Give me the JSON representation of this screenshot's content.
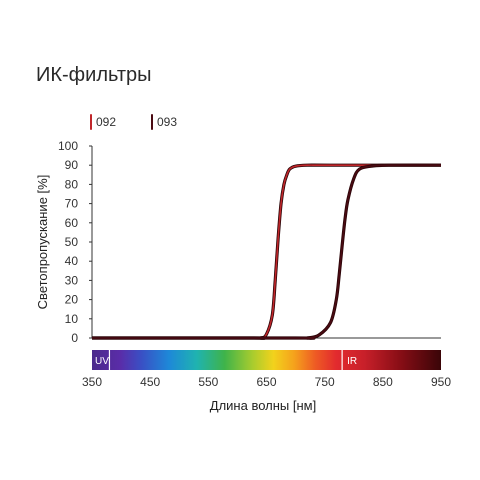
{
  "chart_data": {
    "type": "line",
    "title": "ИК-фильтры",
    "xlabel": "Длина волны [нм]",
    "ylabel": "Светопропускание [%]",
    "xlim": [
      350,
      950
    ],
    "ylim": [
      0,
      100
    ],
    "x_ticks": [
      "350",
      "450",
      "550",
      "650",
      "750",
      "850",
      "950"
    ],
    "y_ticks": [
      "0",
      "10",
      "20",
      "30",
      "40",
      "50",
      "60",
      "70",
      "80",
      "90",
      "100"
    ],
    "series": [
      {
        "name": "092",
        "color": "#c0262a",
        "x": [
          350,
          620,
          640,
          650,
          660,
          665,
          670,
          675,
          680,
          685,
          690,
          700,
          720,
          760,
          950
        ],
        "y": [
          0,
          0,
          0,
          2,
          12,
          30,
          52,
          70,
          80,
          85,
          88,
          89.5,
          90,
          90,
          90
        ]
      },
      {
        "name": "093",
        "color": "#4a0a12",
        "x": [
          350,
          700,
          720,
          740,
          760,
          770,
          775,
          780,
          785,
          790,
          800,
          810,
          830,
          860,
          950
        ],
        "y": [
          0,
          0,
          0,
          1.5,
          8,
          20,
          33,
          48,
          62,
          72,
          83,
          88,
          89.5,
          90,
          90
        ]
      }
    ],
    "spectrum_bar": {
      "uv_label": "UV",
      "ir_label": "IR",
      "uv_end": 380,
      "ir_start": 780
    },
    "grid": false,
    "legend_position": "top-left"
  }
}
